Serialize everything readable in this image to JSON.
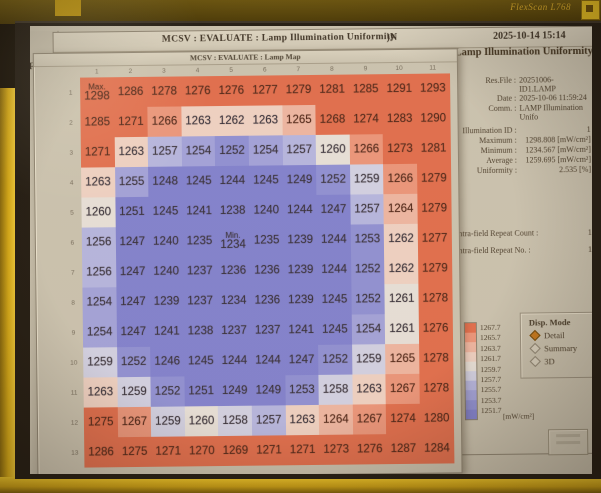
{
  "monitor": {
    "brand": "FlexScan L768"
  },
  "titlebar": {
    "title": "MCSV : EVALUATE : Lamp Illumination Uniformity",
    "fragment": ")N",
    "datetime": "2025-10-14 15:14"
  },
  "map_window": {
    "title": "MCSV : EVALUATE : Lamp Map",
    "left_fragment": "F"
  },
  "info_panel": {
    "title": "Lamp Illumination Uniformity",
    "res_file_label": "Res.File :",
    "res_file_value": "20251006-ID1.LAMP",
    "date_label": "Date :",
    "date_value": "2025-10-06 11:59:24",
    "comm_label": "Comm. :",
    "comm_value": "LAMP Illumination Unifo",
    "id_label": "Illumination ID :",
    "id_value": "1",
    "max_label": "Maximum :",
    "max_value": "1298.808 [mW/cm²]",
    "min_label": "Minimum :",
    "min_value": "1234.567 [mW/cm²]",
    "avg_label": "Average :",
    "avg_value": "1259.695 [mW/cm²]",
    "unif_label": "Uniformity :",
    "unif_value": "2.535 [%]",
    "repeat_count_label": "Intra-field Repeat Count :",
    "repeat_count_value": "1",
    "repeat_no_label": "Intra-field Repeat No. :",
    "repeat_no_value": "1"
  },
  "disp_mode": {
    "title": "Disp. Mode",
    "options": [
      "Detail",
      "Summary",
      "3D"
    ],
    "selected": "Detail",
    "radio_color": "#c87a20"
  },
  "legend": {
    "ticks": [
      "1267.7",
      "1265.7",
      "1263.7",
      "1261.7",
      "1259.7",
      "1257.7",
      "1255.7",
      "1253.7",
      "1251.7"
    ],
    "unit": "[mW/cm²]"
  },
  "chart_data": {
    "type": "heatmap",
    "title": "Lamp Map",
    "unit": "[mW/cm²]",
    "col_labels": [
      "1",
      "2",
      "3",
      "4",
      "5",
      "6",
      "7",
      "8",
      "9",
      "10",
      "11"
    ],
    "row_labels": [
      "1",
      "2",
      "3",
      "4",
      "5",
      "6",
      "7",
      "8",
      "9",
      "10",
      "11",
      "12",
      "13"
    ],
    "values": [
      [
        1298,
        1286,
        1278,
        1276,
        1276,
        1277,
        1279,
        1281,
        1285,
        1291,
        1293
      ],
      [
        1285,
        1271,
        1266,
        1263,
        1262,
        1263,
        1265,
        1268,
        1274,
        1283,
        1290
      ],
      [
        1271,
        1263,
        1257,
        1254,
        1252,
        1254,
        1257,
        1260,
        1266,
        1273,
        1281
      ],
      [
        1263,
        1255,
        1248,
        1245,
        1244,
        1245,
        1249,
        1252,
        1259,
        1266,
        1279
      ],
      [
        1260,
        1251,
        1245,
        1241,
        1238,
        1240,
        1244,
        1247,
        1257,
        1264,
        1279
      ],
      [
        1256,
        1247,
        1240,
        1235,
        1234,
        1235,
        1239,
        1244,
        1253,
        1262,
        1277
      ],
      [
        1256,
        1247,
        1240,
        1237,
        1236,
        1236,
        1239,
        1244,
        1252,
        1262,
        1279
      ],
      [
        1254,
        1247,
        1239,
        1237,
        1234,
        1236,
        1239,
        1245,
        1252,
        1261,
        1278
      ],
      [
        1254,
        1247,
        1241,
        1238,
        1237,
        1237,
        1241,
        1245,
        1254,
        1261,
        1276
      ],
      [
        1259,
        1252,
        1246,
        1245,
        1244,
        1244,
        1247,
        1252,
        1259,
        1265,
        1278
      ],
      [
        1263,
        1259,
        1252,
        1251,
        1249,
        1249,
        1253,
        1258,
        1263,
        1267,
        1278
      ],
      [
        1275,
        1267,
        1259,
        1260,
        1258,
        1257,
        1263,
        1264,
        1267,
        1274,
        1280
      ],
      [
        1286,
        1275,
        1271,
        1270,
        1269,
        1271,
        1271,
        1273,
        1276,
        1287,
        1284
      ]
    ],
    "annotations": [
      {
        "row": 1,
        "col": 1,
        "text": "Max."
      },
      {
        "row": 6,
        "col": 5,
        "text": "Min."
      }
    ],
    "thresholds": [
      1251.7,
      1253.7,
      1255.7,
      1257.7,
      1259.7,
      1261.7,
      1263.7,
      1265.7,
      1267.7
    ],
    "band_colors": [
      "#8183d6",
      "#8f92db",
      "#a2a4e1",
      "#b6b8e7",
      "#d3d4eb",
      "#e8e3e0",
      "#f0d4ca",
      "#efb8a8",
      "#ec9780",
      "#e26f52"
    ],
    "legend_position": "right"
  }
}
